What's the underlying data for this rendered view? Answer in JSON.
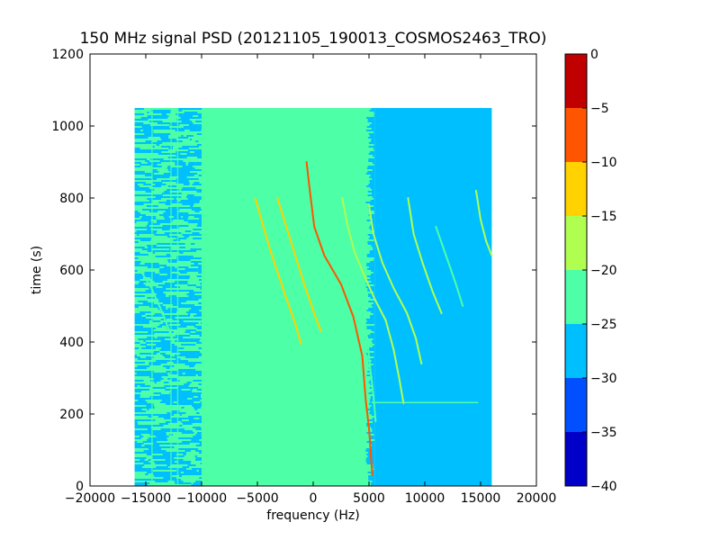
{
  "chart_data": {
    "type": "heatmap",
    "title": "150 MHz signal PSD (20121105_190013_COSMOS2463_TRO)",
    "xlabel": "frequency (Hz)",
    "ylabel": "time (s)",
    "xlim": [
      -20000,
      20000
    ],
    "ylim": [
      0,
      1200
    ],
    "x_ticks": [
      -20000,
      -15000,
      -10000,
      -5000,
      0,
      5000,
      10000,
      15000,
      20000
    ],
    "y_ticks": [
      0,
      200,
      400,
      600,
      800,
      1000,
      1200
    ],
    "x_tick_labels": [
      "−20000",
      "−15000",
      "−10000",
      "−5000",
      "0",
      "5000",
      "10000",
      "15000",
      "20000"
    ],
    "y_tick_labels": [
      "0",
      "200",
      "400",
      "600",
      "800",
      "1000",
      "1200"
    ],
    "data_extent": {
      "x": [
        -16000,
        16000
      ],
      "y": [
        0,
        1050
      ]
    },
    "colorbar": {
      "range": [
        -40,
        0
      ],
      "ticks": [
        0,
        -5,
        -10,
        -15,
        -20,
        -25,
        -30,
        -35,
        -40
      ],
      "tick_labels": [
        "0",
        "−5",
        "−10",
        "−15",
        "−20",
        "−25",
        "−30",
        "−35",
        "−40"
      ],
      "bands": [
        {
          "from": -5,
          "to": 0,
          "color": "#c00000"
        },
        {
          "from": -10,
          "to": -5,
          "color": "#ff5500"
        },
        {
          "from": -15,
          "to": -10,
          "color": "#ffd200"
        },
        {
          "from": -20,
          "to": -15,
          "color": "#b0ff50"
        },
        {
          "from": -25,
          "to": -20,
          "color": "#4dffa6"
        },
        {
          "from": -30,
          "to": -25,
          "color": "#00bfff"
        },
        {
          "from": -35,
          "to": -30,
          "color": "#0050ff"
        },
        {
          "from": -40,
          "to": -35,
          "color": "#0000c8"
        }
      ]
    },
    "regions": [
      {
        "x_range": [
          -16000,
          -10000
        ],
        "level": -24,
        "texture": "noisy-mix"
      },
      {
        "x_range": [
          -10000,
          5500
        ],
        "level": -22,
        "texture": "uniform"
      },
      {
        "x_range": [
          5500,
          16000
        ],
        "level": -27,
        "texture": "uniform"
      }
    ],
    "traces": [
      {
        "points": [
          [
            -5200,
            800
          ],
          [
            -3800,
            650
          ],
          [
            -2500,
            530
          ],
          [
            -1600,
            450
          ],
          [
            -1100,
            395
          ]
        ],
        "level": -15
      },
      {
        "points": [
          [
            -3200,
            800
          ],
          [
            -2000,
            680
          ],
          [
            -800,
            560
          ],
          [
            200,
            470
          ],
          [
            700,
            430
          ]
        ],
        "level": -15
      },
      {
        "points": [
          [
            -600,
            900
          ],
          [
            -300,
            820
          ],
          [
            100,
            720
          ],
          [
            1000,
            640
          ],
          [
            2500,
            560
          ],
          [
            3600,
            470
          ],
          [
            4400,
            360
          ],
          [
            4700,
            240
          ],
          [
            5000,
            160
          ],
          [
            5300,
            30
          ]
        ],
        "level": -7
      },
      {
        "points": [
          [
            2600,
            800
          ],
          [
            3100,
            720
          ],
          [
            3700,
            650
          ],
          [
            4500,
            590
          ],
          [
            5500,
            520
          ],
          [
            6500,
            460
          ],
          [
            7200,
            380
          ],
          [
            7700,
            300
          ],
          [
            8100,
            230
          ]
        ],
        "level": -17
      },
      {
        "points": [
          [
            5000,
            780
          ],
          [
            5400,
            700
          ],
          [
            6200,
            620
          ],
          [
            7200,
            550
          ],
          [
            8400,
            480
          ],
          [
            9200,
            410
          ],
          [
            9700,
            340
          ]
        ],
        "level": -18
      },
      {
        "points": [
          [
            8500,
            800
          ],
          [
            9000,
            700
          ],
          [
            9800,
            620
          ],
          [
            10700,
            540
          ],
          [
            11500,
            480
          ]
        ],
        "level": -19
      },
      {
        "points": [
          [
            11000,
            720
          ],
          [
            11900,
            640
          ],
          [
            12800,
            560
          ],
          [
            13400,
            500
          ]
        ],
        "level": -22
      },
      {
        "points": [
          [
            14600,
            820
          ],
          [
            15000,
            740
          ],
          [
            15500,
            680
          ],
          [
            16000,
            640
          ]
        ],
        "level": -18
      },
      {
        "points": [
          [
            -15500,
            600
          ],
          [
            -14500,
            550
          ],
          [
            -13500,
            480
          ],
          [
            -12500,
            400
          ]
        ],
        "level": -21
      },
      {
        "points": [
          [
            4400,
            500
          ],
          [
            4800,
            420
          ],
          [
            5100,
            330
          ],
          [
            5400,
            250
          ],
          [
            5600,
            180
          ]
        ],
        "level": -21
      }
    ],
    "horizontal_lines": [
      {
        "y": 232,
        "x_range": [
          5200,
          14800
        ],
        "level": -22
      }
    ]
  }
}
